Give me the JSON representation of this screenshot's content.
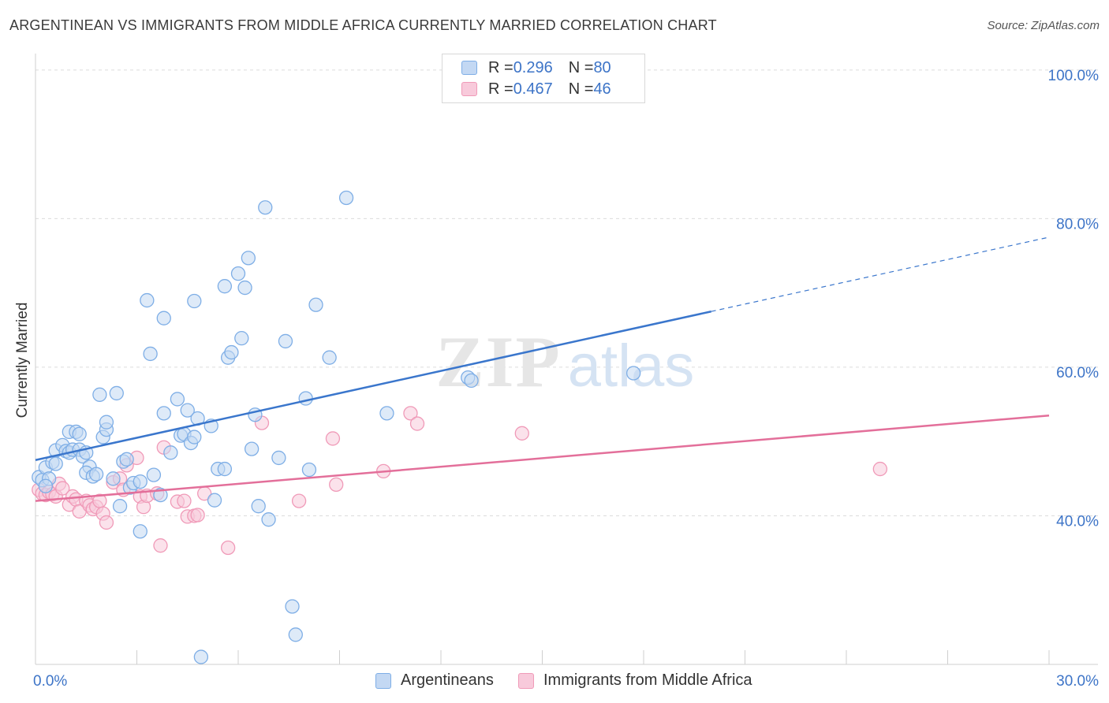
{
  "title": "ARGENTINEAN VS IMMIGRANTS FROM MIDDLE AFRICA CURRENTLY MARRIED CORRELATION CHART",
  "source": "Source: ZipAtlas.com",
  "watermark": {
    "zip": "ZIP",
    "atlas": "atlas"
  },
  "colors": {
    "blue": "#7eaee6",
    "blue_line": "#3a76cc",
    "blue_fill": "#c3d8f3",
    "pink": "#f09ab8",
    "pink_line": "#e36f9a",
    "pink_fill": "#f8cadb",
    "axis_text": "#3d74c7"
  },
  "legend": {
    "series1": {
      "r_label": "R = ",
      "r_value": "0.296",
      "n_label": "N = ",
      "n_value": "80"
    },
    "series2": {
      "r_label": "R = ",
      "r_value": "0.467",
      "n_label": "N = ",
      "n_value": "46"
    }
  },
  "bottom_legend": {
    "series1": "Argentineans",
    "series2": "Immigrants from Middle Africa"
  },
  "chart_data": {
    "type": "scatter",
    "title": "ARGENTINEAN VS IMMIGRANTS FROM MIDDLE AFRICA CURRENTLY MARRIED CORRELATION CHART",
    "xlabel": "",
    "ylabel": "Currently Married",
    "xlim": [
      0,
      30
    ],
    "ylim": [
      20,
      102
    ],
    "x_tick_labels": [
      "0.0%",
      "30.0%"
    ],
    "y_ticks": [
      40,
      60,
      80,
      100
    ],
    "y_tick_labels": [
      "40.0%",
      "60.0%",
      "80.0%",
      "100.0%"
    ],
    "grid": true,
    "series": [
      {
        "name": "Argentineans",
        "color": "#7eaee6",
        "r": 0.296,
        "n": 80,
        "trend": {
          "x0": 0,
          "y0": 47.5,
          "x1": 20,
          "y1": 67.5,
          "dashed_to_x": 30,
          "dashed_to_y": 77.5
        },
        "points": [
          [
            0.1,
            45.2
          ],
          [
            0.2,
            44.8
          ],
          [
            0.3,
            46.5
          ],
          [
            0.4,
            45.0
          ],
          [
            0.3,
            44.0
          ],
          [
            0.5,
            47.2
          ],
          [
            0.6,
            48.8
          ],
          [
            0.6,
            47.0
          ],
          [
            0.8,
            49.5
          ],
          [
            0.9,
            48.7
          ],
          [
            1.0,
            48.5
          ],
          [
            1.1,
            48.9
          ],
          [
            1.0,
            51.3
          ],
          [
            1.2,
            51.3
          ],
          [
            1.3,
            48.9
          ],
          [
            1.4,
            48.0
          ],
          [
            1.3,
            51.0
          ],
          [
            1.5,
            48.5
          ],
          [
            1.6,
            46.6
          ],
          [
            1.5,
            45.8
          ],
          [
            1.7,
            45.3
          ],
          [
            1.8,
            45.6
          ],
          [
            1.9,
            56.3
          ],
          [
            2.0,
            50.6
          ],
          [
            2.1,
            51.6
          ],
          [
            2.1,
            52.6
          ],
          [
            2.4,
            56.5
          ],
          [
            2.3,
            45.0
          ],
          [
            2.5,
            41.3
          ],
          [
            2.6,
            47.3
          ],
          [
            2.7,
            47.6
          ],
          [
            2.8,
            43.8
          ],
          [
            2.9,
            44.4
          ],
          [
            3.1,
            44.6
          ],
          [
            3.1,
            37.9
          ],
          [
            3.3,
            69.0
          ],
          [
            3.4,
            61.8
          ],
          [
            3.5,
            45.5
          ],
          [
            3.7,
            42.8
          ],
          [
            3.8,
            53.8
          ],
          [
            3.8,
            66.6
          ],
          [
            4.0,
            48.5
          ],
          [
            4.2,
            55.7
          ],
          [
            4.3,
            50.8
          ],
          [
            4.4,
            51.0
          ],
          [
            4.5,
            54.2
          ],
          [
            4.6,
            49.8
          ],
          [
            4.7,
            50.6
          ],
          [
            4.7,
            68.9
          ],
          [
            4.8,
            53.1
          ],
          [
            4.9,
            21.0
          ],
          [
            5.2,
            52.1
          ],
          [
            5.3,
            42.1
          ],
          [
            5.4,
            46.3
          ],
          [
            5.6,
            46.3
          ],
          [
            5.6,
            70.9
          ],
          [
            5.7,
            61.3
          ],
          [
            5.8,
            62.0
          ],
          [
            6.0,
            72.6
          ],
          [
            6.1,
            63.9
          ],
          [
            6.2,
            70.7
          ],
          [
            6.3,
            74.7
          ],
          [
            6.4,
            49.0
          ],
          [
            6.5,
            53.6
          ],
          [
            6.6,
            41.3
          ],
          [
            6.8,
            81.5
          ],
          [
            6.9,
            39.5
          ],
          [
            7.2,
            47.8
          ],
          [
            7.4,
            63.5
          ],
          [
            7.6,
            27.8
          ],
          [
            7.7,
            24.0
          ],
          [
            8.0,
            55.8
          ],
          [
            8.1,
            46.2
          ],
          [
            8.3,
            68.4
          ],
          [
            8.7,
            61.3
          ],
          [
            9.2,
            82.8
          ],
          [
            10.4,
            53.8
          ],
          [
            12.8,
            58.6
          ],
          [
            17.7,
            59.2
          ],
          [
            12.9,
            58.2
          ]
        ]
      },
      {
        "name": "Immigrants from Middle Africa",
        "color": "#f09ab8",
        "r": 0.467,
        "n": 46,
        "trend": {
          "x0": 0,
          "y0": 42.0,
          "x1": 30,
          "y1": 53.5
        },
        "points": [
          [
            0.1,
            43.5
          ],
          [
            0.2,
            43.0
          ],
          [
            0.3,
            42.8
          ],
          [
            0.4,
            43.2
          ],
          [
            0.5,
            42.9
          ],
          [
            0.6,
            42.6
          ],
          [
            0.7,
            44.3
          ],
          [
            0.8,
            43.7
          ],
          [
            1.0,
            41.5
          ],
          [
            1.1,
            42.6
          ],
          [
            1.2,
            42.2
          ],
          [
            1.3,
            40.6
          ],
          [
            1.5,
            42.0
          ],
          [
            1.6,
            41.4
          ],
          [
            1.7,
            40.9
          ],
          [
            1.8,
            41.2
          ],
          [
            1.9,
            42.0
          ],
          [
            2.0,
            40.3
          ],
          [
            2.1,
            39.1
          ],
          [
            2.3,
            44.5
          ],
          [
            2.5,
            45.0
          ],
          [
            2.6,
            43.5
          ],
          [
            2.7,
            46.8
          ],
          [
            3.0,
            47.8
          ],
          [
            3.1,
            42.6
          ],
          [
            3.2,
            41.2
          ],
          [
            3.3,
            42.7
          ],
          [
            3.6,
            43.0
          ],
          [
            3.7,
            36.0
          ],
          [
            3.8,
            49.2
          ],
          [
            4.2,
            41.9
          ],
          [
            4.4,
            42.0
          ],
          [
            4.5,
            39.9
          ],
          [
            4.7,
            40.0
          ],
          [
            4.8,
            40.1
          ],
          [
            5.0,
            43.0
          ],
          [
            5.7,
            35.7
          ],
          [
            6.7,
            52.5
          ],
          [
            7.8,
            42.0
          ],
          [
            8.8,
            50.4
          ],
          [
            8.9,
            44.2
          ],
          [
            10.3,
            46.0
          ],
          [
            11.1,
            53.8
          ],
          [
            11.3,
            52.4
          ],
          [
            14.4,
            51.1
          ],
          [
            25.0,
            46.3
          ]
        ]
      }
    ]
  }
}
